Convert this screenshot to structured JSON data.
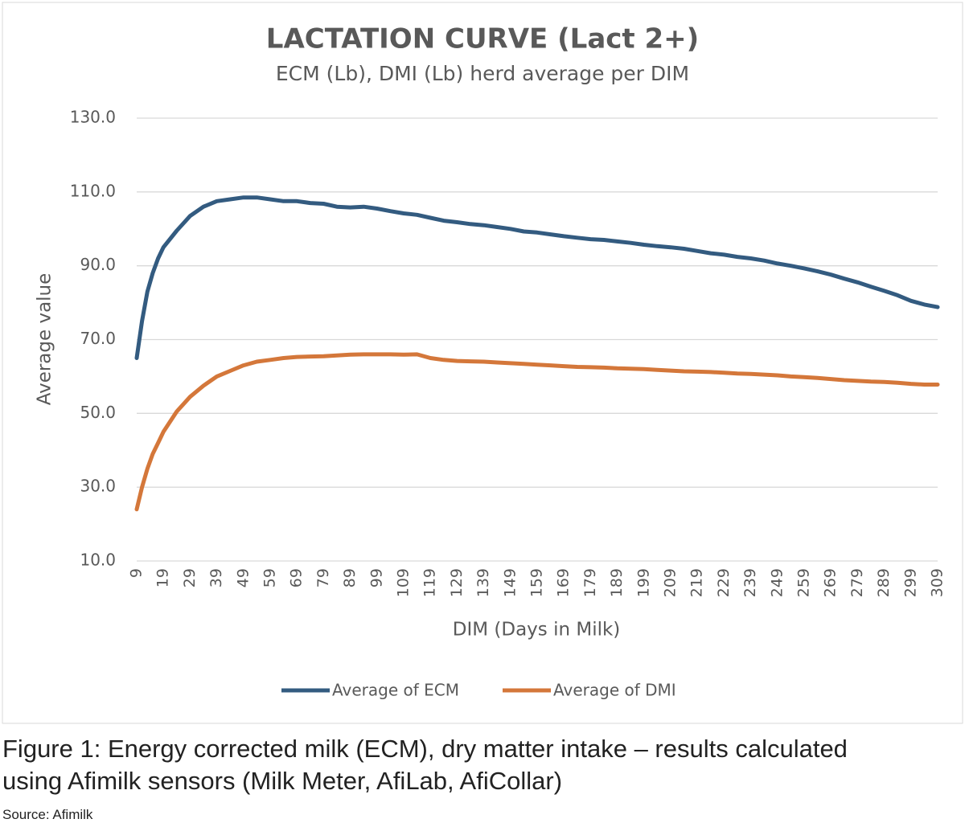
{
  "chart_data": {
    "type": "line",
    "title": "LACTATION CURVE (Lact 2+)",
    "subtitle": "ECM (Lb), DMI (Lb) herd average per DIM",
    "x_label": "DIM (Days in Milk)",
    "y_label": "Average value",
    "x": [
      9,
      11,
      13,
      15,
      17,
      19,
      24,
      29,
      34,
      39,
      44,
      49,
      54,
      59,
      64,
      69,
      74,
      79,
      84,
      89,
      94,
      99,
      104,
      109,
      114,
      119,
      124,
      129,
      134,
      139,
      144,
      149,
      154,
      159,
      164,
      169,
      174,
      179,
      184,
      189,
      194,
      199,
      204,
      209,
      214,
      219,
      224,
      229,
      234,
      239,
      244,
      249,
      254,
      259,
      264,
      269,
      274,
      279,
      284,
      289,
      294,
      299,
      304,
      309
    ],
    "series": [
      {
        "name": "Average of ECM",
        "color": "#335b80",
        "values": [
          65,
          75,
          83,
          88,
          92,
          95,
          99.5,
          103.5,
          106,
          107.5,
          108,
          108.5,
          108.5,
          108,
          107.5,
          107.5,
          107,
          106.8,
          106,
          105.8,
          106,
          105.5,
          104.8,
          104.2,
          103.8,
          103,
          102.2,
          101.8,
          101.3,
          101,
          100.5,
          100,
          99.3,
          99,
          98.5,
          98,
          97.6,
          97.2,
          97,
          96.6,
          96.2,
          95.7,
          95.3,
          95,
          94.6,
          94,
          93.4,
          93,
          92.4,
          92,
          91.4,
          90.6,
          90,
          89.3,
          88.5,
          87.6,
          86.5,
          85.5,
          84.3,
          83.2,
          82,
          80.5,
          79.5,
          78.8
        ]
      },
      {
        "name": "Average of DMI",
        "color": "#d4773a",
        "values": [
          24,
          30,
          35,
          39,
          42,
          45,
          50.5,
          54.5,
          57.5,
          60,
          61.5,
          63,
          64,
          64.5,
          65,
          65.3,
          65.4,
          65.5,
          65.7,
          65.9,
          66,
          66,
          66,
          65.9,
          66,
          65,
          64.5,
          64.2,
          64.1,
          64,
          63.8,
          63.6,
          63.4,
          63.2,
          63,
          62.8,
          62.6,
          62.5,
          62.4,
          62.2,
          62.1,
          62,
          61.8,
          61.6,
          61.4,
          61.3,
          61.2,
          61,
          60.8,
          60.7,
          60.5,
          60.3,
          60,
          59.8,
          59.6,
          59.3,
          59,
          58.8,
          58.6,
          58.5,
          58.3,
          58,
          57.8,
          57.8
        ]
      }
    ],
    "xlim": [
      9,
      309
    ],
    "xticks": [
      9,
      19,
      29,
      39,
      49,
      59,
      69,
      79,
      89,
      99,
      109,
      119,
      129,
      139,
      149,
      159,
      169,
      179,
      189,
      199,
      209,
      219,
      229,
      239,
      249,
      259,
      269,
      279,
      289,
      299,
      309
    ],
    "ylim": [
      10,
      130
    ],
    "yticks": [
      {
        "value": 10,
        "label": "10.0"
      },
      {
        "value": 30,
        "label": "30.0"
      },
      {
        "value": 50,
        "label": "50.0"
      },
      {
        "value": 70,
        "label": "70.0"
      },
      {
        "value": 90,
        "label": "90.0"
      },
      {
        "value": 110,
        "label": "110.0"
      },
      {
        "value": 130,
        "label": "130.0"
      }
    ],
    "grid": true,
    "legend": "bottom"
  },
  "caption": [
    "Figure 1: Energy corrected milk (ECM), dry matter intake –  results calculated",
    "using Afimilk sensors (Milk Meter, AfiLab, AfiCollar)"
  ],
  "source": "Source: Afimilk"
}
